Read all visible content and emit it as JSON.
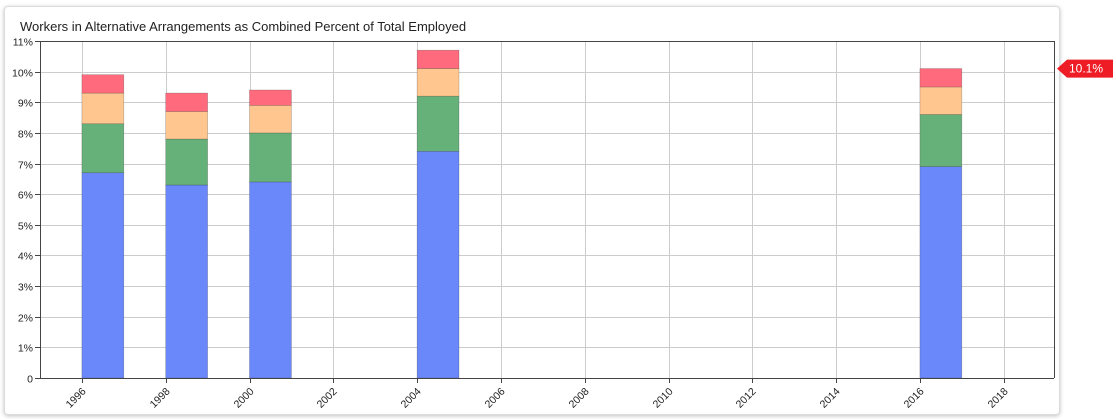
{
  "chart_data": {
    "type": "bar",
    "stacked": true,
    "title": "Workers in Alternative Arrangements as Combined Percent of Total Employed",
    "xlabel": "",
    "ylabel": "",
    "x": [
      1996.5,
      1998.5,
      2000.5,
      2004.5,
      2016.5
    ],
    "x_ticks": [
      1996,
      1998,
      2000,
      2002,
      2004,
      2006,
      2008,
      2010,
      2012,
      2014,
      2016,
      2018
    ],
    "xlim": [
      1995,
      2019.2
    ],
    "ylim": [
      0,
      11
    ],
    "y_ticks": [
      "0",
      "1%",
      "2%",
      "3%",
      "4%",
      "5%",
      "6%",
      "7%",
      "8%",
      "9%",
      "10%",
      "11%"
    ],
    "grid": true,
    "series": [
      {
        "color": "#6b88fa",
        "values": [
          6.7,
          6.3,
          6.4,
          7.4,
          6.9
        ]
      },
      {
        "color": "#66b07a",
        "values": [
          1.6,
          1.5,
          1.6,
          1.8,
          1.7
        ]
      },
      {
        "color": "#ffc68f",
        "values": [
          1.0,
          0.9,
          0.9,
          0.9,
          0.9
        ]
      },
      {
        "color": "#ff6b7c",
        "values": [
          0.6,
          0.6,
          0.5,
          0.6,
          0.6
        ]
      }
    ],
    "last_value_flag": {
      "label": "10.1%",
      "value": 10.1,
      "color": "#ee1c25"
    }
  }
}
